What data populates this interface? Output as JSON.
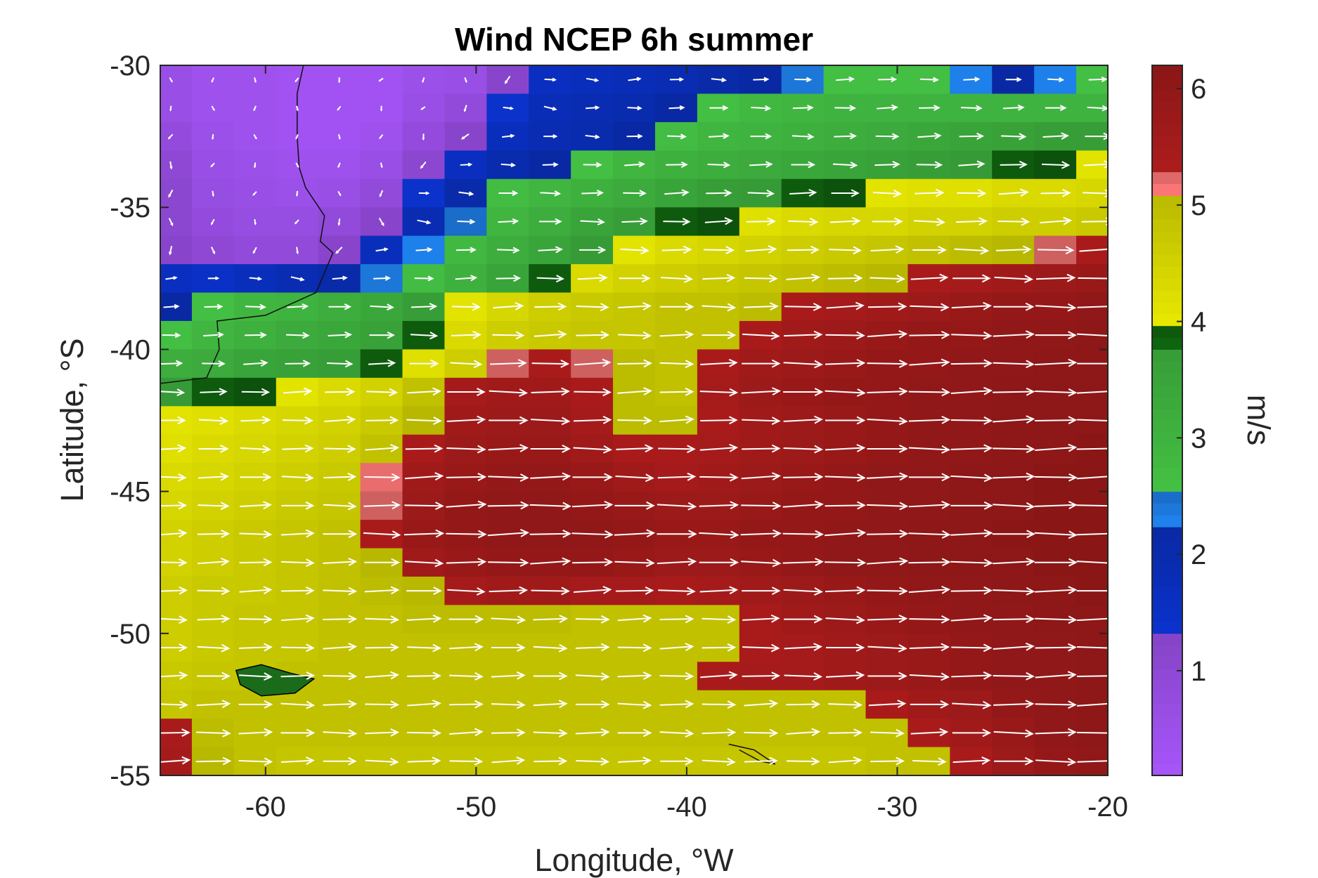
{
  "chart_data": {
    "type": "heatmap",
    "title": "Wind NCEP 6h summer",
    "xlabel": "Longitude, °W",
    "ylabel": "Latitude, °S",
    "xlim": [
      -65,
      -20
    ],
    "ylim": [
      -55,
      -30
    ],
    "x_ticks": [
      "-60",
      "-50",
      "-40",
      "-30",
      "-20"
    ],
    "y_ticks": [
      "-30",
      "-35",
      "-40",
      "-45",
      "-50",
      "-55"
    ],
    "colorbar": {
      "label": "m/s",
      "range": [
        0.1,
        6.2
      ],
      "ticks": [
        "1",
        "2",
        "3",
        "4",
        "5",
        "6"
      ],
      "bands": [
        {
          "from": 0.1,
          "to": 1.3,
          "color": "#9b4fe8"
        },
        {
          "from": 1.3,
          "to": 2.2,
          "color": "#0a2fbf"
        },
        {
          "from": 2.2,
          "to": 2.5,
          "color": "#1e7fe8"
        },
        {
          "from": 2.5,
          "to": 3.8,
          "color": "#3fb43f"
        },
        {
          "from": 3.8,
          "to": 4.0,
          "color": "#0e5e0e"
        },
        {
          "from": 4.0,
          "to": 5.1,
          "color": "#d6d600"
        },
        {
          "from": 5.1,
          "to": 5.3,
          "color": "#f07070"
        },
        {
          "from": 5.3,
          "to": 6.2,
          "color": "#a01a1a"
        }
      ]
    },
    "grid_lon_step": 2.0,
    "grid_lat_step": 1.0,
    "speed_field_description_rows_north_to_south": [
      {
        "lat": -30.5,
        "speeds": [
          0.6,
          0.4,
          0.4,
          0.3,
          0.3,
          0.3,
          0.5,
          0.6,
          1.2,
          1.6,
          1.7,
          1.8,
          1.9,
          2.1,
          2.2,
          2.4,
          2.6,
          2.6,
          2.6,
          2.3,
          2.2,
          2.3,
          2.6
        ]
      },
      {
        "lat": -31.5,
        "speeds": [
          0.6,
          0.4,
          0.4,
          0.3,
          0.3,
          0.3,
          0.6,
          0.9,
          1.4,
          1.8,
          1.9,
          2.0,
          2.2,
          2.6,
          2.8,
          2.9,
          3.0,
          3.0,
          3.0,
          3.0,
          3.0,
          3.0,
          3.0
        ]
      },
      {
        "lat": -32.5,
        "speeds": [
          0.8,
          0.5,
          0.4,
          0.3,
          0.3,
          0.4,
          0.8,
          1.2,
          1.7,
          1.9,
          2.0,
          2.2,
          2.7,
          2.9,
          3.0,
          3.1,
          3.2,
          3.3,
          3.4,
          3.5,
          3.6,
          3.7,
          3.7
        ]
      },
      {
        "lat": -33.5,
        "speeds": [
          1.0,
          0.6,
          0.5,
          0.4,
          0.4,
          0.6,
          1.1,
          1.6,
          2.0,
          2.2,
          2.6,
          2.9,
          3.1,
          3.2,
          3.3,
          3.4,
          3.5,
          3.6,
          3.7,
          3.8,
          3.9,
          4.0,
          4.1
        ]
      },
      {
        "lat": -34.5,
        "speeds": [
          1.1,
          0.7,
          0.6,
          0.5,
          0.6,
          0.9,
          1.4,
          2.1,
          2.7,
          2.9,
          3.1,
          3.3,
          3.5,
          3.7,
          3.8,
          3.9,
          4.0,
          4.1,
          4.2,
          4.2,
          4.3,
          4.3,
          4.4
        ]
      },
      {
        "lat": -35.5,
        "speeds": [
          1.1,
          0.8,
          0.7,
          0.7,
          0.9,
          1.2,
          1.9,
          2.5,
          2.9,
          3.2,
          3.5,
          3.7,
          3.9,
          4.0,
          4.2,
          4.3,
          4.4,
          4.4,
          4.5,
          4.5,
          4.6,
          4.6,
          4.7
        ]
      },
      {
        "lat": -36.5,
        "speeds": [
          1.2,
          1.0,
          0.9,
          0.9,
          1.2,
          1.7,
          2.3,
          2.8,
          3.2,
          3.5,
          3.8,
          4.1,
          4.3,
          4.4,
          4.5,
          4.6,
          4.7,
          4.8,
          4.9,
          5.0,
          5.1,
          5.3,
          5.4
        ]
      },
      {
        "lat": -37.5,
        "speeds": [
          1.6,
          1.5,
          1.7,
          1.9,
          2.1,
          2.4,
          2.7,
          3.1,
          3.5,
          3.9,
          4.3,
          4.5,
          4.6,
          4.7,
          4.8,
          4.9,
          5.0,
          5.1,
          5.4,
          5.5,
          5.6,
          5.7,
          5.8
        ]
      },
      {
        "lat": -38.5,
        "speeds": [
          2.2,
          2.6,
          2.9,
          3.0,
          3.2,
          3.4,
          3.7,
          4.1,
          4.4,
          4.6,
          4.7,
          4.8,
          4.9,
          4.9,
          5.0,
          5.4,
          5.5,
          5.6,
          5.7,
          5.8,
          5.9,
          5.9,
          6.0
        ]
      },
      {
        "lat": -39.5,
        "speeds": [
          2.6,
          2.9,
          3.1,
          3.3,
          3.4,
          3.6,
          3.9,
          4.3,
          4.6,
          4.7,
          4.8,
          4.8,
          4.9,
          4.9,
          5.4,
          5.6,
          5.7,
          5.8,
          5.9,
          5.9,
          6.0,
          6.0,
          6.1
        ]
      },
      {
        "lat": -40.5,
        "speeds": [
          3.2,
          3.3,
          3.5,
          3.6,
          3.7,
          3.9,
          4.2,
          4.6,
          5.3,
          5.4,
          5.3,
          5.0,
          4.9,
          5.4,
          5.6,
          5.7,
          5.8,
          5.9,
          5.9,
          6.0,
          6.0,
          6.1,
          6.1
        ]
      },
      {
        "lat": -41.5,
        "speeds": [
          3.8,
          3.9,
          4.0,
          4.1,
          4.3,
          4.5,
          4.9,
          5.5,
          5.6,
          5.6,
          5.4,
          5.0,
          4.9,
          5.5,
          5.7,
          5.8,
          5.9,
          5.9,
          6.0,
          6.0,
          6.1,
          6.1,
          6.1
        ]
      },
      {
        "lat": -42.5,
        "speeds": [
          4.1,
          4.2,
          4.3,
          4.4,
          4.5,
          4.7,
          5.1,
          5.6,
          5.7,
          5.7,
          5.5,
          5.0,
          5.0,
          5.4,
          5.6,
          5.7,
          5.8,
          5.9,
          6.0,
          6.0,
          6.1,
          6.1,
          6.1
        ]
      },
      {
        "lat": -43.5,
        "speeds": [
          4.2,
          4.3,
          4.4,
          4.5,
          4.6,
          4.9,
          5.4,
          5.7,
          5.8,
          5.8,
          5.6,
          5.4,
          5.4,
          5.5,
          5.6,
          5.7,
          5.8,
          5.9,
          6.0,
          6.0,
          6.1,
          6.1,
          6.2
        ]
      },
      {
        "lat": -44.5,
        "speeds": [
          4.3,
          4.4,
          4.5,
          4.6,
          4.7,
          5.2,
          5.6,
          5.8,
          5.9,
          5.9,
          5.8,
          5.6,
          5.5,
          5.6,
          5.7,
          5.8,
          5.9,
          6.0,
          6.0,
          6.1,
          6.1,
          6.2,
          6.2
        ]
      },
      {
        "lat": -45.5,
        "speeds": [
          4.4,
          4.5,
          4.6,
          4.7,
          4.8,
          5.3,
          5.7,
          5.9,
          6.0,
          6.0,
          5.9,
          5.8,
          5.7,
          5.7,
          5.8,
          5.9,
          5.9,
          6.0,
          6.0,
          6.1,
          6.1,
          6.2,
          6.2
        ]
      },
      {
        "lat": -46.5,
        "speeds": [
          4.5,
          4.6,
          4.7,
          4.8,
          4.9,
          5.4,
          5.8,
          5.9,
          6.0,
          6.0,
          6.0,
          5.9,
          5.8,
          5.8,
          5.9,
          5.9,
          6.0,
          6.0,
          6.1,
          6.1,
          6.2,
          6.2,
          6.2
        ]
      },
      {
        "lat": -47.5,
        "speeds": [
          4.5,
          4.6,
          4.7,
          4.8,
          4.9,
          5.1,
          5.6,
          5.8,
          5.9,
          5.9,
          5.9,
          5.8,
          5.7,
          5.7,
          5.8,
          5.9,
          6.0,
          6.0,
          6.1,
          6.1,
          6.1,
          6.2,
          6.2
        ]
      },
      {
        "lat": -48.5,
        "speeds": [
          4.6,
          4.7,
          4.7,
          4.8,
          4.9,
          5.0,
          5.1,
          5.5,
          5.6,
          5.6,
          5.5,
          5.5,
          5.4,
          5.5,
          5.6,
          5.7,
          5.8,
          5.9,
          6.0,
          6.0,
          6.1,
          6.1,
          6.2
        ]
      },
      {
        "lat": -49.5,
        "speeds": [
          4.6,
          4.7,
          4.8,
          4.8,
          4.9,
          4.9,
          5.0,
          5.0,
          5.0,
          5.0,
          4.9,
          4.9,
          4.9,
          4.9,
          5.4,
          5.6,
          5.7,
          5.8,
          5.9,
          6.0,
          6.0,
          6.1,
          6.1
        ]
      },
      {
        "lat": -50.5,
        "speeds": [
          4.6,
          4.7,
          4.8,
          4.8,
          4.9,
          4.9,
          4.9,
          4.9,
          4.9,
          4.9,
          4.9,
          4.9,
          4.9,
          4.9,
          5.4,
          5.5,
          5.6,
          5.7,
          5.8,
          5.9,
          6.0,
          6.0,
          6.1
        ]
      },
      {
        "lat": -51.5,
        "speeds": [
          4.7,
          4.8,
          4.8,
          4.9,
          4.9,
          4.9,
          4.9,
          4.9,
          4.9,
          4.9,
          4.9,
          4.9,
          4.9,
          5.4,
          5.5,
          5.5,
          5.6,
          5.7,
          5.8,
          5.9,
          6.0,
          6.0,
          6.1
        ]
      },
      {
        "lat": -52.5,
        "speeds": [
          4.8,
          4.9,
          4.9,
          4.9,
          4.9,
          4.9,
          4.9,
          4.9,
          4.9,
          4.9,
          4.9,
          4.9,
          4.9,
          4.9,
          4.9,
          4.9,
          4.9,
          5.4,
          5.6,
          5.7,
          5.9,
          6.0,
          6.1
        ]
      },
      {
        "lat": -53.5,
        "speeds": [
          5.4,
          5.0,
          4.9,
          4.9,
          4.9,
          4.9,
          4.9,
          4.9,
          4.9,
          4.9,
          4.9,
          4.9,
          4.9,
          4.9,
          4.9,
          4.9,
          4.9,
          4.9,
          5.4,
          5.6,
          5.8,
          6.0,
          6.1
        ]
      },
      {
        "lat": -54.5,
        "speeds": [
          5.5,
          5.1,
          4.9,
          4.8,
          4.8,
          4.8,
          4.8,
          4.8,
          4.8,
          4.8,
          4.8,
          4.8,
          4.8,
          4.8,
          4.8,
          4.8,
          4.8,
          4.9,
          4.9,
          5.4,
          5.7,
          5.9,
          6.0
        ]
      }
    ],
    "wind_vectors": "white quiver arrows, predominantly westerly (pointing east) south of 37°S, weak and variable in the calm region near the coast at 30–37°S"
  }
}
